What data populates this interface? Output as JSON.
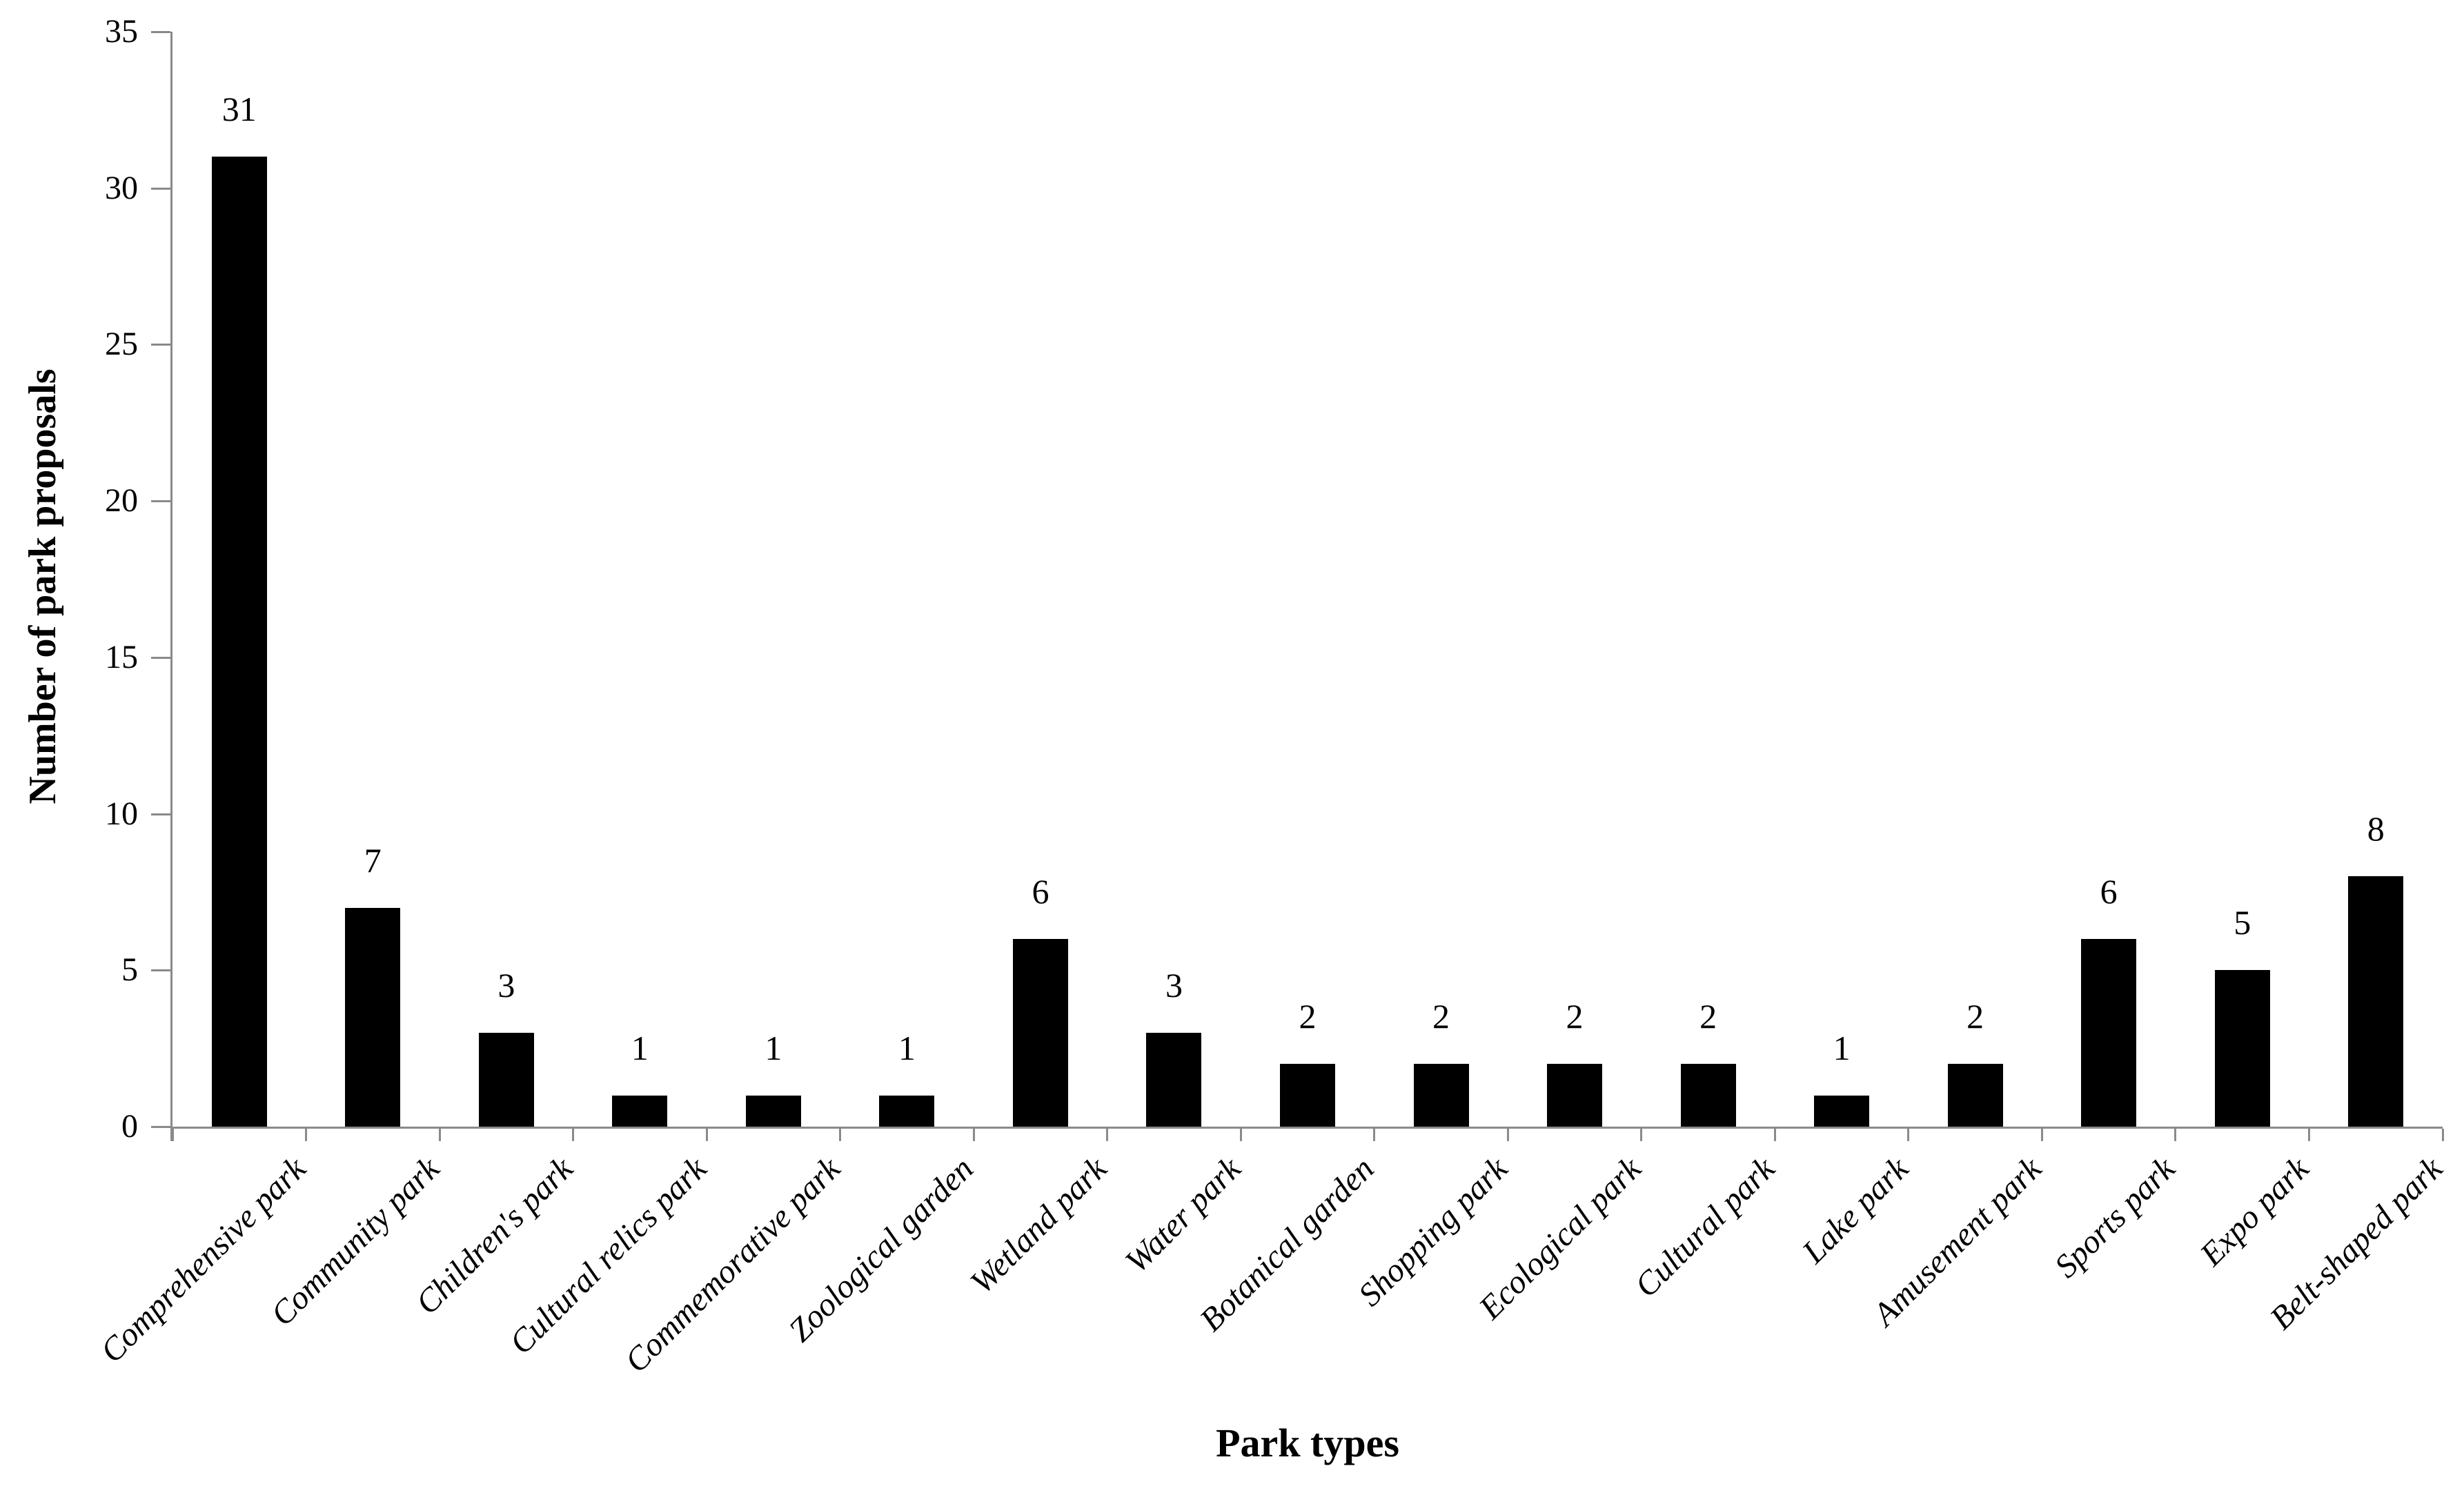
{
  "chart_data": {
    "type": "bar",
    "title": "",
    "xlabel": "Park types",
    "ylabel": "Number of park proposals",
    "categories": [
      "Comprehensive park",
      "Community park",
      "Children's park",
      "Cultural relics park",
      "Commemorative park",
      "Zoological garden",
      "Wetland park",
      "Water park",
      "Botanical garden",
      "Shopping park",
      "Ecological park",
      "Cultural park",
      "Lake park",
      "Amusement park",
      "Sports park",
      "Expo park",
      "Belt-shaped park"
    ],
    "values": [
      31,
      7,
      3,
      1,
      1,
      1,
      6,
      3,
      2,
      2,
      2,
      2,
      1,
      2,
      6,
      5,
      8
    ],
    "ylim": [
      0,
      35
    ],
    "yticks": [
      0,
      5,
      10,
      15,
      20,
      25,
      30,
      35
    ],
    "data_labels": true,
    "grid": "off",
    "legend_position": "none",
    "bar_color": "#000000",
    "axis_color": "#8a8a8a",
    "text_color": "#000000"
  }
}
